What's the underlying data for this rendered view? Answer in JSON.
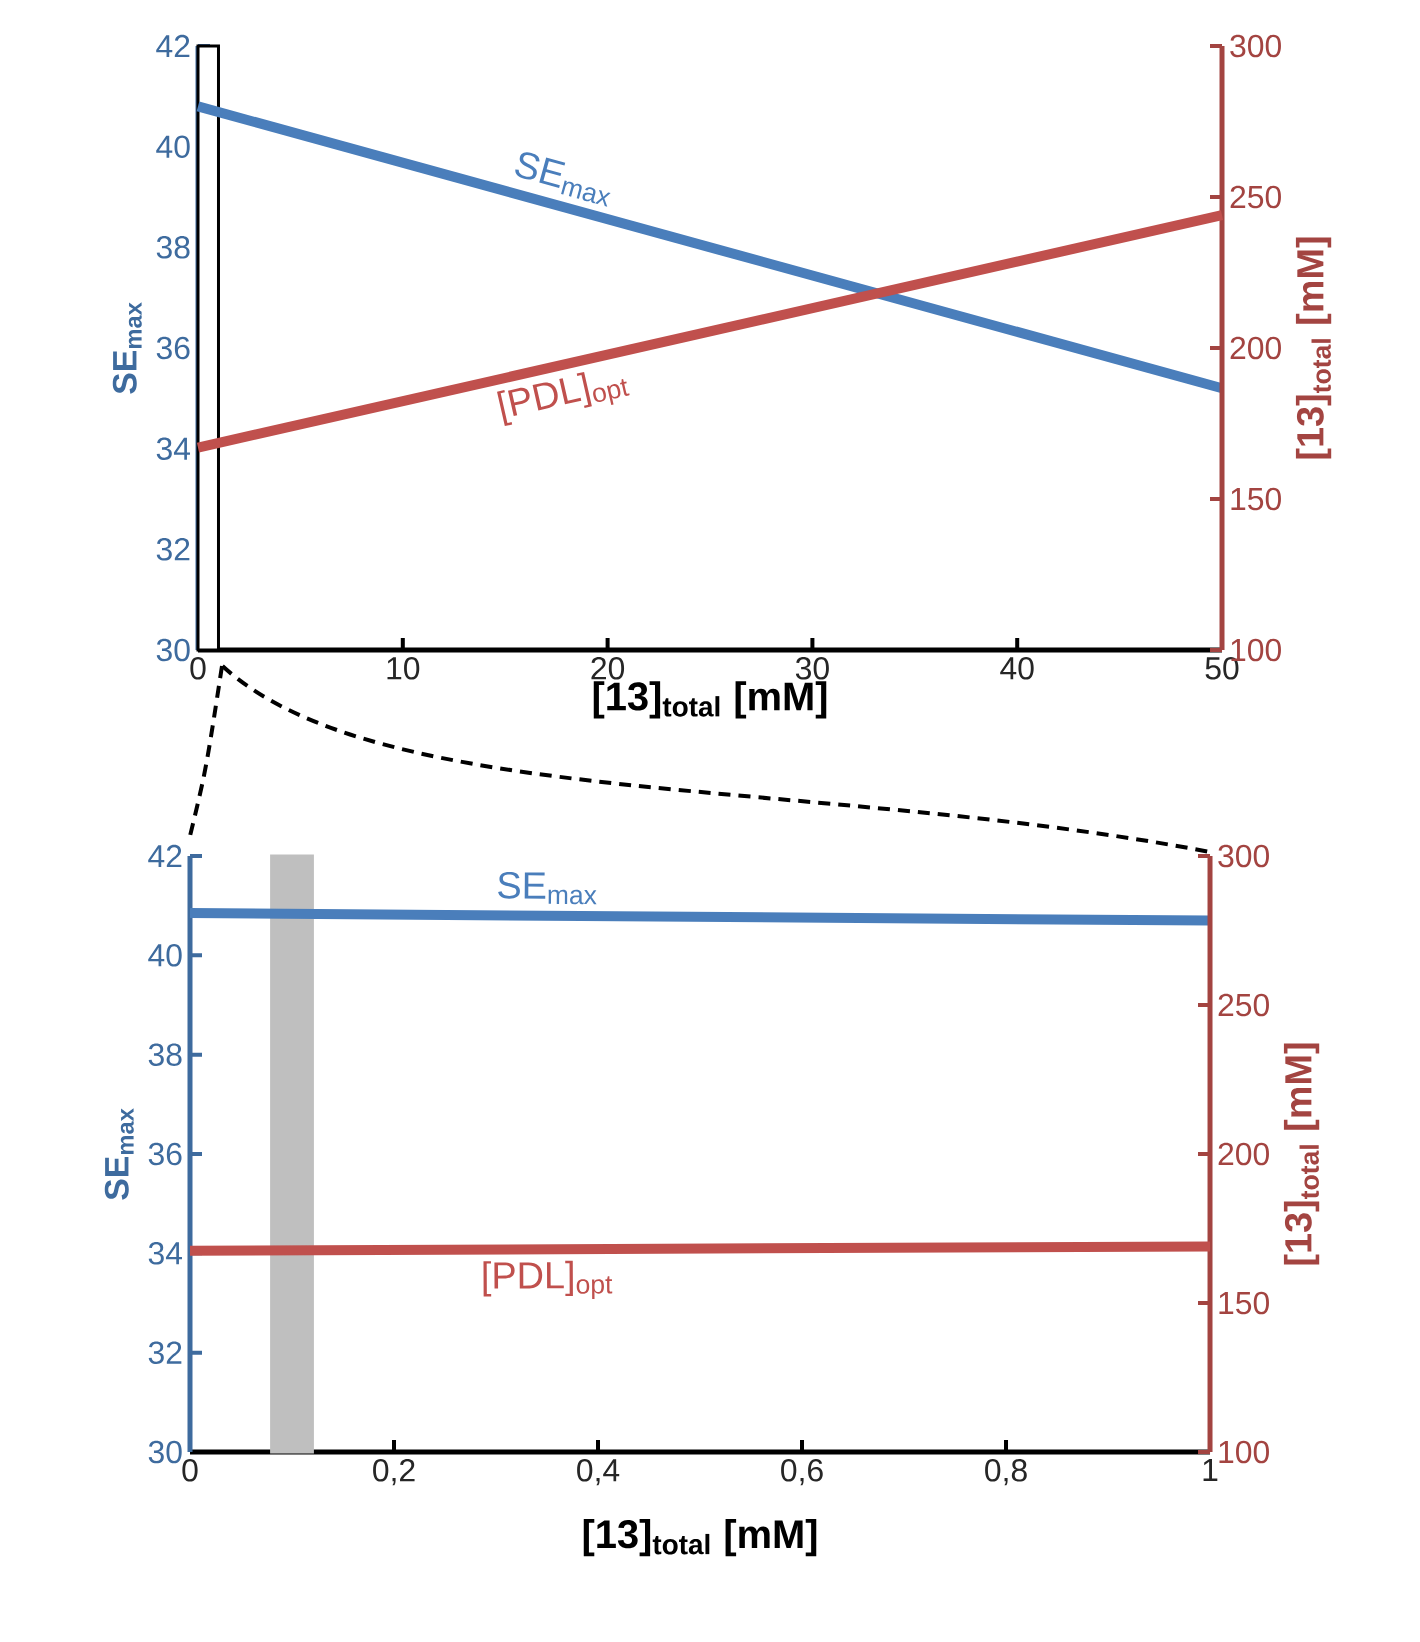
{
  "chart_data": [
    {
      "type": "line",
      "x": [
        0,
        50
      ],
      "xlim": [
        0,
        50
      ],
      "xticks": [
        0,
        10,
        20,
        30,
        40,
        50
      ],
      "ylim": [
        30,
        42
      ],
      "yticks": [
        30,
        32,
        34,
        36,
        38,
        40,
        42
      ],
      "y2lim": [
        100,
        300
      ],
      "y2ticks": [
        100,
        150,
        200,
        250,
        300
      ],
      "xlabel": "[13]$_{total}$ [mM]",
      "ylabel": "SE$_{max}$",
      "y2label": "[13]$_{total}$ [mM]",
      "series": [
        {
          "name": "SE$_{max}$",
          "color": "#4a7ebb",
          "values": [
            40.8,
            35.2
          ]
        },
        {
          "name": "[PDL]$_{opt}$",
          "color": "#c0504d",
          "axis": "y2",
          "values": [
            167,
            244
          ]
        }
      ],
      "bands": [
        {
          "axis": "x",
          "from": 0,
          "to": 1,
          "color": "#ffffff"
        }
      ]
    },
    {
      "type": "line",
      "x": [
        0,
        1
      ],
      "xlim": [
        0,
        1
      ],
      "xticks": [
        0,
        {
          "value": 0.2,
          "label": "0,2"
        },
        {
          "value": 0.4,
          "label": "0,4"
        },
        {
          "value": 0.6,
          "label": "0,6"
        },
        {
          "value": 0.8,
          "label": "0,8"
        },
        1
      ],
      "ylim": [
        30,
        42
      ],
      "yticks": [
        30,
        32,
        34,
        36,
        38,
        40,
        42
      ],
      "y2lim": [
        100,
        300
      ],
      "y2ticks": [
        100,
        150,
        200,
        250,
        300
      ],
      "xlabel": "[13]$_{total}$ [mM]",
      "ylabel": "SE$_{max}$",
      "y2label": "[13]$_{total}$ [mM]",
      "series": [
        {
          "name": "SE$_{max}$",
          "color": "#4a7ebb",
          "values": [
            40.85,
            40.7
          ]
        },
        {
          "name": "[PDL]$_{opt}$",
          "color": "#c0504d",
          "axis": "y2",
          "values": [
            167.5,
            169
          ]
        }
      ],
      "bands": [
        {
          "axis": "x",
          "from": 0.08,
          "to": 0.12,
          "color": "#bfbfbf"
        }
      ]
    }
  ]
}
